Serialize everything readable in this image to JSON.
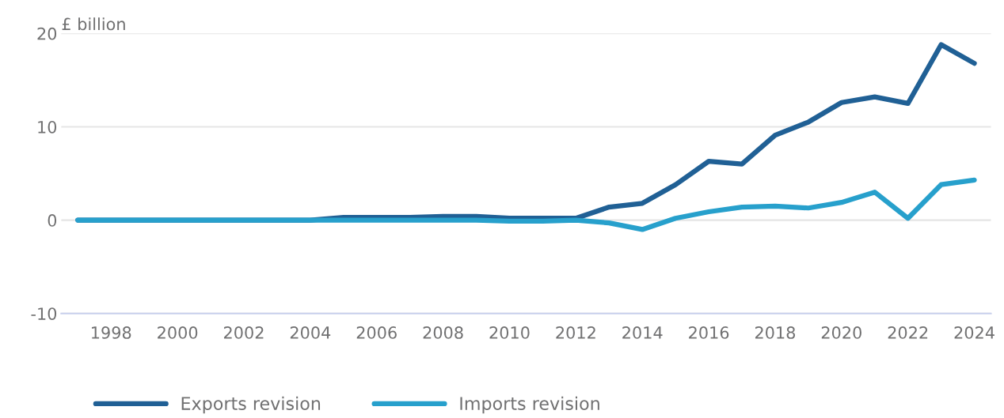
{
  "chart_data": {
    "type": "line",
    "ylabel": "£ billion",
    "x": [
      1997,
      1998,
      1999,
      2000,
      2001,
      2002,
      2003,
      2004,
      2005,
      2006,
      2007,
      2008,
      2009,
      2010,
      2011,
      2012,
      2013,
      2014,
      2015,
      2016,
      2017,
      2018,
      2019,
      2020,
      2021,
      2022,
      2023,
      2024
    ],
    "series": [
      {
        "name": "Exports revision",
        "color": "#206095",
        "values": [
          0,
          0,
          0,
          0,
          0,
          0,
          0,
          0,
          0.3,
          0.3,
          0.3,
          0.4,
          0.4,
          0.2,
          0.2,
          0.2,
          1.4,
          1.8,
          3.8,
          6.3,
          6.0,
          9.1,
          10.5,
          12.6,
          13.2,
          12.5,
          18.8,
          16.8
        ]
      },
      {
        "name": "Imports revision",
        "color": "#27a0cc",
        "values": [
          0,
          0,
          0,
          0,
          0,
          0,
          0,
          0,
          0,
          0,
          0,
          0,
          0,
          -0.1,
          -0.1,
          0,
          -0.3,
          -1.0,
          0.2,
          0.9,
          1.4,
          1.5,
          1.3,
          1.9,
          3.0,
          0.2,
          3.8,
          4.3
        ]
      }
    ],
    "xlim": [
      1996.5,
      2024.5
    ],
    "xticks": [
      1998,
      2000,
      2002,
      2004,
      2006,
      2008,
      2010,
      2012,
      2014,
      2016,
      2018,
      2020,
      2022,
      2024
    ],
    "ylim": [
      -10,
      20
    ],
    "yticks": [
      -10,
      0,
      10,
      20
    ],
    "grid": "y",
    "legend": "bottom",
    "marker": "none",
    "line_style": "solid"
  }
}
